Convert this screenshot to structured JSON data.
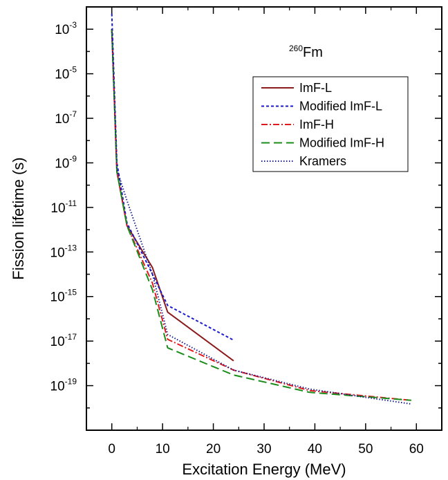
{
  "chart_data": {
    "type": "line",
    "xlabel": "Excitation Energy (MeV)",
    "ylabel": "Fission lifetime (s)",
    "x_scale": "linear",
    "y_scale": "log",
    "xlim": [
      -5,
      65
    ],
    "ylim": [
      1e-21,
      0.01
    ],
    "x_ticks": [
      0,
      10,
      20,
      30,
      40,
      50,
      60
    ],
    "y_ticks": [
      {
        "value": 0.001,
        "base": "10",
        "exp": "-3"
      },
      {
        "value": 1e-05,
        "base": "10",
        "exp": "-5"
      },
      {
        "value": 1e-07,
        "base": "10",
        "exp": "-7"
      },
      {
        "value": 1e-09,
        "base": "10",
        "exp": "-9"
      },
      {
        "value": 1e-11,
        "base": "10",
        "exp": "-11"
      },
      {
        "value": 1e-13,
        "base": "10",
        "exp": "-13"
      },
      {
        "value": 1e-15,
        "base": "10",
        "exp": "-15"
      },
      {
        "value": 1e-17,
        "base": "10",
        "exp": "-17"
      },
      {
        "value": 1e-19,
        "base": "10",
        "exp": "-19"
      }
    ],
    "annotation": {
      "sup": "260",
      "text": "Fm"
    },
    "legend_position": "top-right",
    "grid": false,
    "series": [
      {
        "name": "ImF-L",
        "color": "#8b1a1a",
        "dash": "solid",
        "x": [
          0,
          1,
          3,
          8,
          11,
          24
        ],
        "y": [
          0.001,
          4e-10,
          1.5e-12,
          2e-14,
          2e-16,
          1.3e-18
        ]
      },
      {
        "name": "Modified ImF-L",
        "color": "#1a1acc",
        "dash": "dash-short",
        "x": [
          0,
          1,
          3,
          8,
          11,
          24
        ],
        "y": [
          0.005,
          1e-09,
          2e-12,
          1e-14,
          4e-16,
          1.1e-17
        ]
      },
      {
        "name": "ImF-H",
        "color": "#e0191e",
        "dash": "dashdot",
        "x": [
          0,
          1,
          3,
          8,
          11,
          24,
          39,
          59
        ],
        "y": [
          0.001,
          4e-10,
          1.5e-12,
          4e-15,
          1.2e-17,
          5e-19,
          6e-20,
          2.2e-20
        ]
      },
      {
        "name": "Modified ImF-H",
        "color": "#1a8c1a",
        "dash": "dash-long",
        "x": [
          0,
          1,
          3,
          8,
          11,
          24,
          39,
          59
        ],
        "y": [
          0.001,
          4e-10,
          1.5e-12,
          2e-15,
          5e-18,
          3e-19,
          5e-20,
          2.2e-20
        ]
      },
      {
        "name": "Kramers",
        "color": "#1a1a8c",
        "dash": "dot",
        "x": [
          0,
          1,
          3,
          8,
          11,
          24,
          39,
          59
        ],
        "y": [
          0.001,
          5e-10,
          2e-11,
          1e-14,
          2e-17,
          5e-19,
          7e-20,
          1.5e-20
        ]
      }
    ]
  }
}
